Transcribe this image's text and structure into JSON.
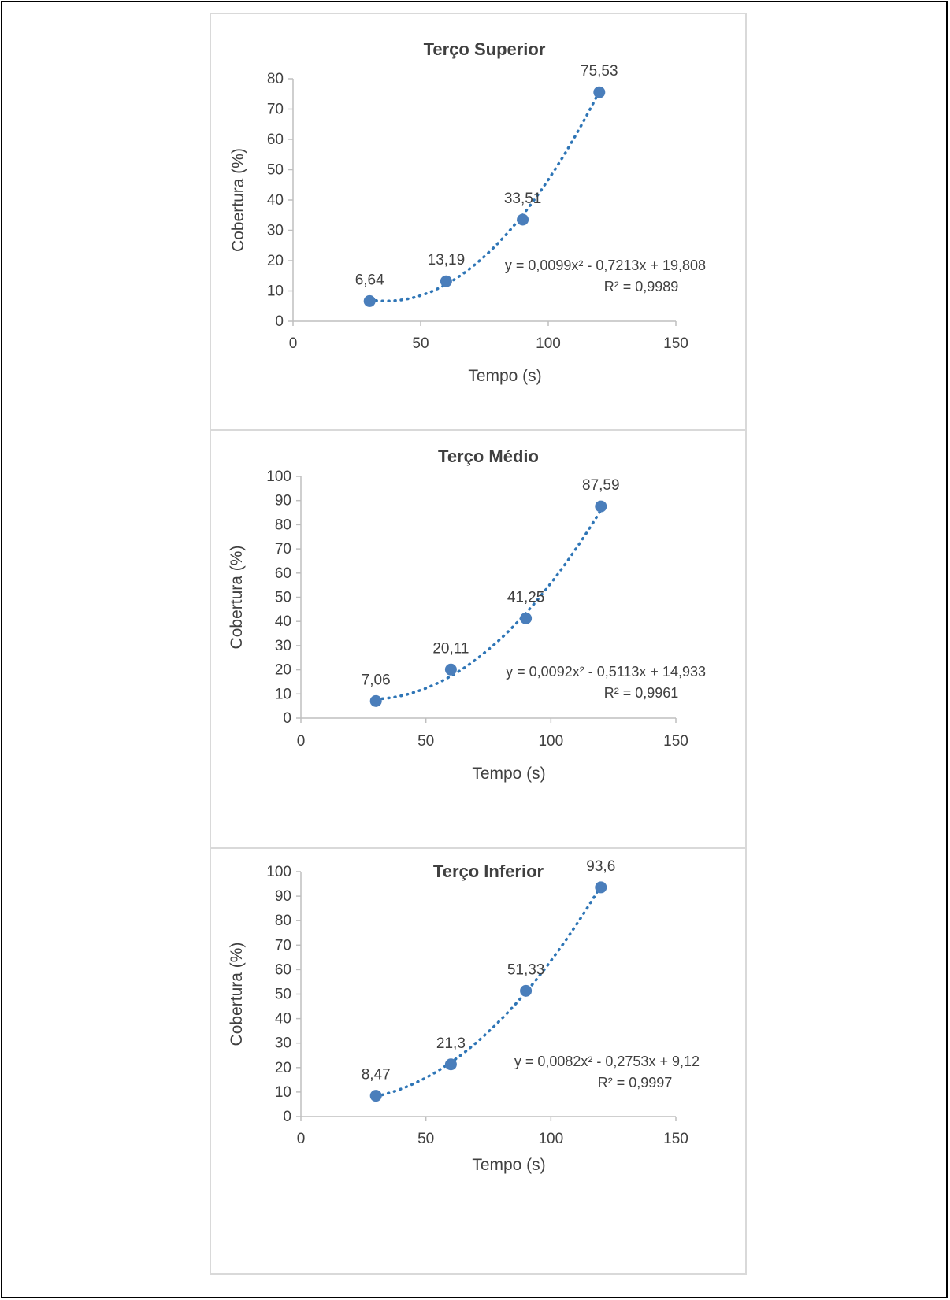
{
  "chart_data": [
    {
      "type": "scatter",
      "title": "Terço Superior",
      "xlabel": "Tempo (s)",
      "ylabel": "Cobertura (%)",
      "xlim": [
        0,
        150
      ],
      "ylim": [
        0,
        80
      ],
      "xticks": [
        0,
        50,
        100,
        150
      ],
      "yticks": [
        0,
        10,
        20,
        30,
        40,
        50,
        60,
        70,
        80
      ],
      "x": [
        30,
        60,
        90,
        120
      ],
      "y": [
        6.64,
        13.19,
        33.51,
        75.53
      ],
      "data_labels": [
        "6,64",
        "13,19",
        "33,51",
        "75,53"
      ],
      "trendline": {
        "type": "polynomial",
        "coefficients": [
          0.0099,
          -0.7213,
          19.808
        ],
        "equation": "y = 0,0099x² - 0,7213x + 19,808",
        "r2": "R² = 0,9989"
      },
      "marker_color": "#4a7ebb",
      "trendline_color": "#2e75b6",
      "grid": false,
      "legend": "none"
    },
    {
      "type": "scatter",
      "title": "Terço Médio",
      "xlabel": "Tempo (s)",
      "ylabel": "Cobertura (%)",
      "xlim": [
        0,
        150
      ],
      "ylim": [
        0,
        100
      ],
      "xticks": [
        0,
        50,
        100,
        150
      ],
      "yticks": [
        0,
        10,
        20,
        30,
        40,
        50,
        60,
        70,
        80,
        90,
        100
      ],
      "x": [
        30,
        60,
        90,
        120
      ],
      "y": [
        7.06,
        20.11,
        41.25,
        87.59
      ],
      "data_labels": [
        "7,06",
        "20,11",
        "41,25",
        "87,59"
      ],
      "trendline": {
        "type": "polynomial",
        "coefficients": [
          0.0092,
          -0.5113,
          14.933
        ],
        "equation": "y = 0,0092x² - 0,5113x + 14,933",
        "r2": "R² = 0,9961"
      },
      "marker_color": "#4a7ebb",
      "trendline_color": "#2e75b6",
      "grid": false,
      "legend": "none"
    },
    {
      "type": "scatter",
      "title": "Terço Inferior",
      "xlabel": "Tempo (s)",
      "ylabel": "Cobertura (%)",
      "xlim": [
        0,
        150
      ],
      "ylim": [
        0,
        100
      ],
      "xticks": [
        0,
        50,
        100,
        150
      ],
      "yticks": [
        0,
        10,
        20,
        30,
        40,
        50,
        60,
        70,
        80,
        90,
        100
      ],
      "x": [
        30,
        60,
        90,
        120
      ],
      "y": [
        8.47,
        21.3,
        51.33,
        93.6
      ],
      "data_labels": [
        "8,47",
        "21,3",
        "51,33",
        "93,6"
      ],
      "trendline": {
        "type": "polynomial",
        "coefficients": [
          0.0082,
          -0.2753,
          9.12
        ],
        "equation": "y = 0,0082x² - 0,2753x + 9,12",
        "r2": "R² = 0,9997"
      },
      "marker_color": "#4a7ebb",
      "trendline_color": "#2e75b6",
      "grid": false,
      "legend": "none"
    }
  ]
}
